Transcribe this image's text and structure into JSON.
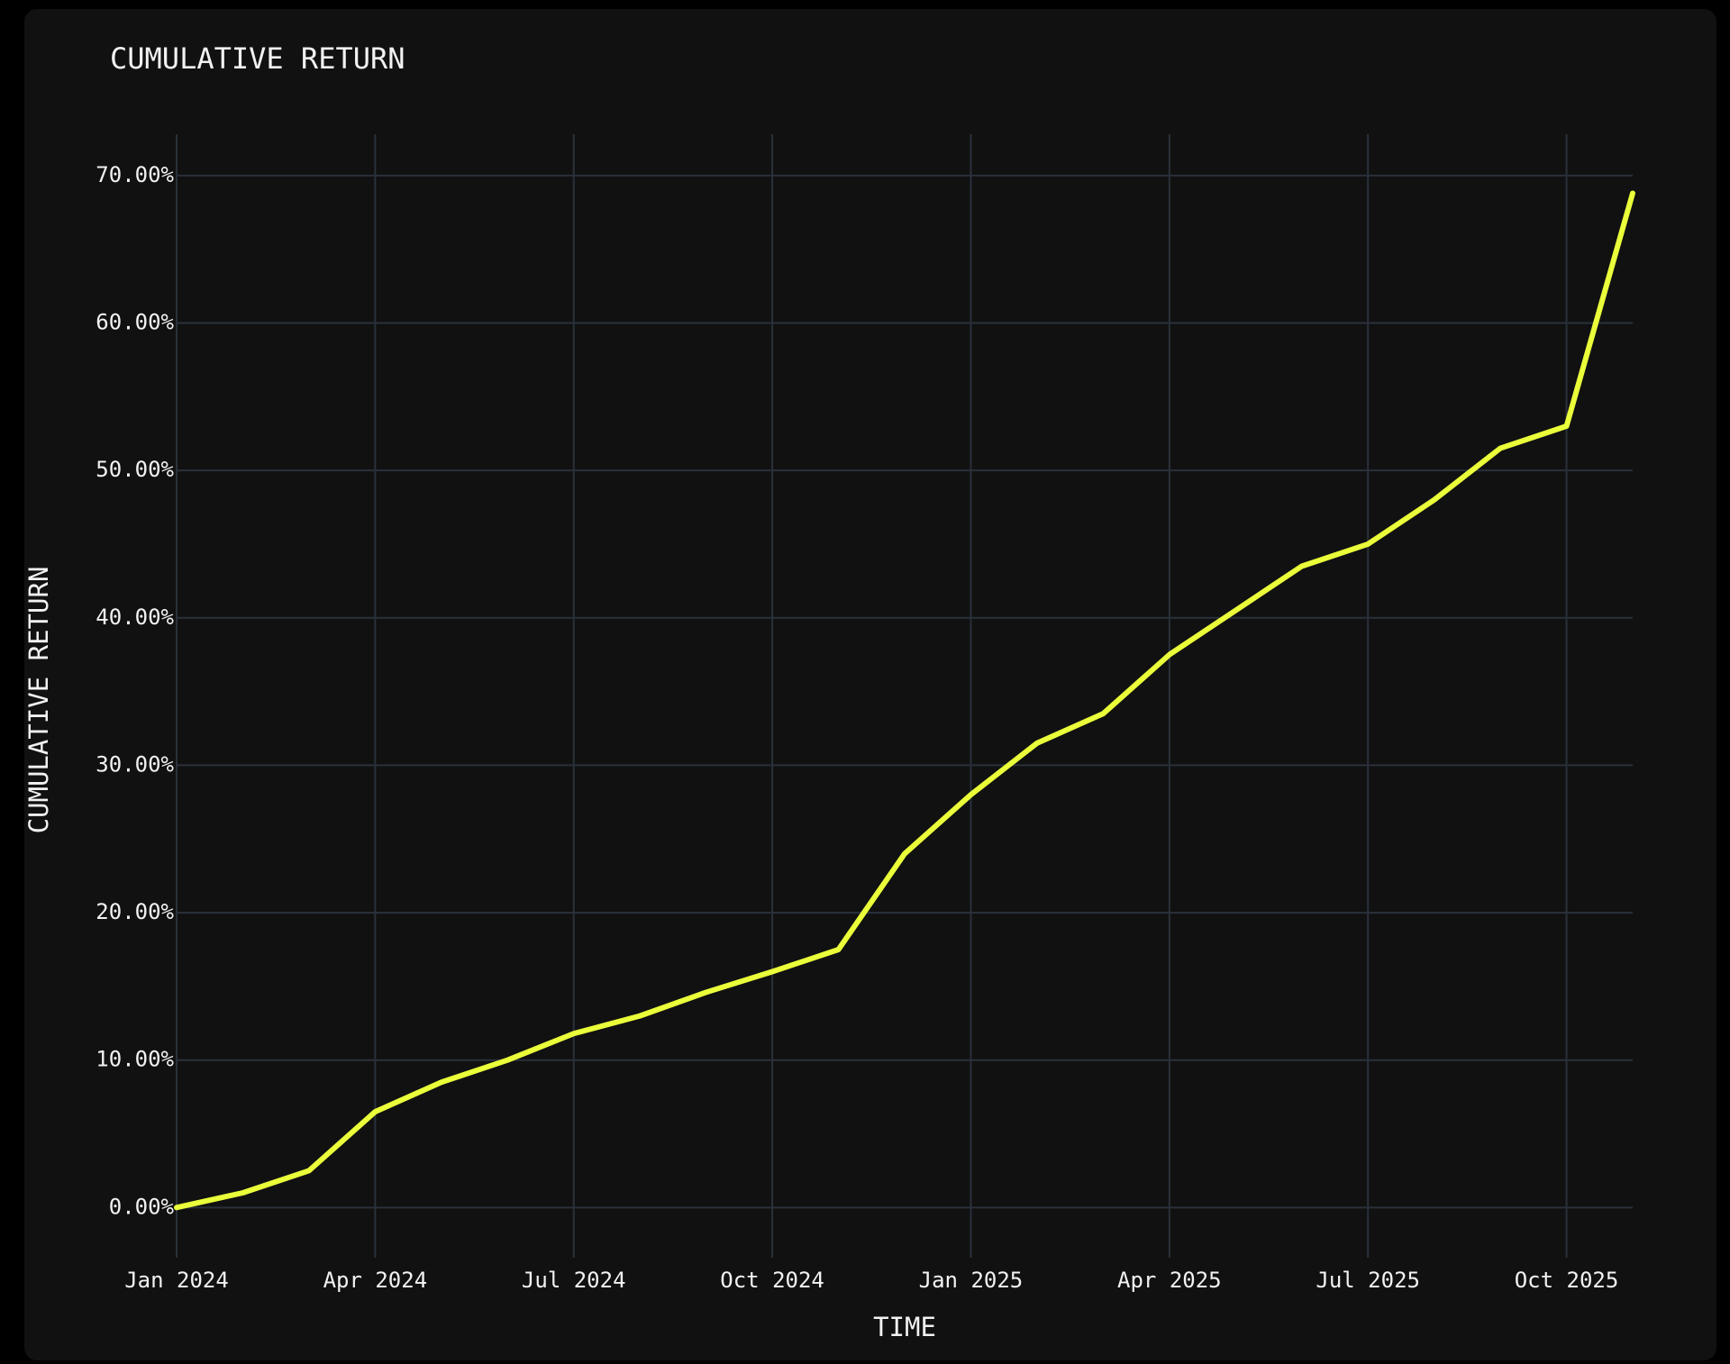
{
  "chart_data": {
    "type": "line",
    "title": "CUMULATIVE RETURN",
    "x_label": "TIME",
    "y_label": "CUMULATIVE RETURN",
    "x": [
      "2024-01",
      "2024-02",
      "2024-03",
      "2024-04",
      "2024-05",
      "2024-06",
      "2024-07",
      "2024-08",
      "2024-09",
      "2024-10",
      "2024-11",
      "2024-12",
      "2025-01",
      "2025-02",
      "2025-03",
      "2025-04",
      "2025-05",
      "2025-06",
      "2025-07",
      "2025-08",
      "2025-09",
      "2025-10",
      "2025-11"
    ],
    "series": [
      {
        "name": "Cumulative Return",
        "color": "#eaff3a",
        "values": [
          0,
          1.0,
          2.5,
          6.5,
          8.5,
          10.0,
          11.8,
          13.0,
          14.6,
          16.0,
          17.5,
          24.0,
          28.0,
          31.5,
          33.5,
          37.5,
          40.5,
          43.5,
          45.0,
          48.0,
          51.5,
          53.0,
          68.8
        ]
      }
    ],
    "xlim": [
      "2024-01",
      "2025-11"
    ],
    "xticks": [
      {
        "value": "2024-01",
        "label": "Jan 2024"
      },
      {
        "value": "2024-04",
        "label": "Apr 2024"
      },
      {
        "value": "2024-07",
        "label": "Jul 2024"
      },
      {
        "value": "2024-10",
        "label": "Oct 2024"
      },
      {
        "value": "2025-01",
        "label": "Jan 2025"
      },
      {
        "value": "2025-04",
        "label": "Apr 2025"
      },
      {
        "value": "2025-07",
        "label": "Jul 2025"
      },
      {
        "value": "2025-10",
        "label": "Oct 2025"
      }
    ],
    "ylim": [
      -3.4,
      72.8
    ],
    "yticks": [
      {
        "value": 0,
        "label": "0.00%"
      },
      {
        "value": 10,
        "label": "10.00%"
      },
      {
        "value": 20,
        "label": "20.00%"
      },
      {
        "value": 30,
        "label": "30.00%"
      },
      {
        "value": 40,
        "label": "40.00%"
      },
      {
        "value": 50,
        "label": "50.00%"
      },
      {
        "value": 60,
        "label": "60.00%"
      },
      {
        "value": 70,
        "label": "70.00%"
      }
    ],
    "grid": true
  }
}
